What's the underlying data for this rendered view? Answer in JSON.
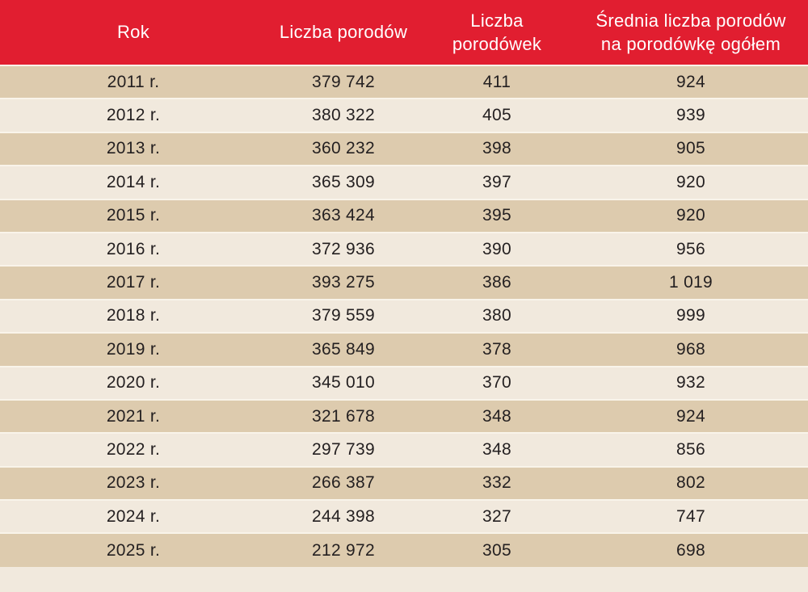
{
  "table": {
    "columns": [
      {
        "id": "rok",
        "label": "Rok"
      },
      {
        "id": "liczba_porodow",
        "label": "Liczba porodów"
      },
      {
        "id": "liczba_porodowek",
        "label": "Liczba porodówek"
      },
      {
        "id": "srednia_na_porodowke",
        "label": "Średnia liczba porodów na porodówkę ogółem"
      }
    ],
    "rows": [
      {
        "cells": [
          "2011 r.",
          "379 742",
          "411",
          "924"
        ]
      },
      {
        "cells": [
          "2012 r.",
          "380 322",
          "405",
          "939"
        ]
      },
      {
        "cells": [
          "2013 r.",
          "360 232",
          "398",
          "905"
        ]
      },
      {
        "cells": [
          "2014 r.",
          "365 309",
          "397",
          "920"
        ]
      },
      {
        "cells": [
          "2015 r.",
          "363 424",
          "395",
          "920"
        ]
      },
      {
        "cells": [
          "2016 r.",
          "372 936",
          "390",
          "956"
        ]
      },
      {
        "cells": [
          "2017 r.",
          "393 275",
          "386",
          "1 019"
        ]
      },
      {
        "cells": [
          "2018 r.",
          "379 559",
          "380",
          "999"
        ]
      },
      {
        "cells": [
          "2019 r.",
          "365 849",
          "378",
          "968"
        ]
      },
      {
        "cells": [
          "2020 r.",
          "345 010",
          "370",
          "932"
        ]
      },
      {
        "cells": [
          "2021 r.",
          "321 678",
          "348",
          "924"
        ]
      },
      {
        "cells": [
          "2022 r.",
          "297 739",
          "348",
          "856"
        ]
      },
      {
        "cells": [
          "2023 r.",
          "266 387",
          "332",
          "802"
        ]
      },
      {
        "cells": [
          "2024 r.",
          "244 398",
          "327",
          "747"
        ]
      },
      {
        "cells": [
          "2025 r.",
          "212 972",
          "305",
          "698"
        ]
      }
    ]
  },
  "colors": {
    "header_bg": "#e11e30",
    "header_text": "#ffffff",
    "row_dark": "#ddcbae",
    "row_light": "#f1e9dd",
    "separator": "#f9f4ea",
    "text": "#231f20"
  },
  "chart_data": {
    "type": "table",
    "title": "",
    "columns": [
      "Rok",
      "Liczba porodów",
      "Liczba porodówek",
      "Średnia liczba porodów na porodówkę ogółem"
    ],
    "rows": [
      [
        "2011 r.",
        379742,
        411,
        924
      ],
      [
        "2012 r.",
        380322,
        405,
        939
      ],
      [
        "2013 r.",
        360232,
        398,
        905
      ],
      [
        "2014 r.",
        365309,
        397,
        920
      ],
      [
        "2015 r.",
        363424,
        395,
        920
      ],
      [
        "2016 r.",
        372936,
        390,
        956
      ],
      [
        "2017 r.",
        393275,
        386,
        1019
      ],
      [
        "2018 r.",
        379559,
        380,
        999
      ],
      [
        "2019 r.",
        365849,
        378,
        968
      ],
      [
        "2020 r.",
        345010,
        370,
        932
      ],
      [
        "2021 r.",
        321678,
        348,
        924
      ],
      [
        "2022 r.",
        297739,
        348,
        856
      ],
      [
        "2023 r.",
        266387,
        332,
        802
      ],
      [
        "2024 r.",
        244398,
        327,
        747
      ],
      [
        "2025 r.",
        212972,
        305,
        698
      ]
    ]
  }
}
